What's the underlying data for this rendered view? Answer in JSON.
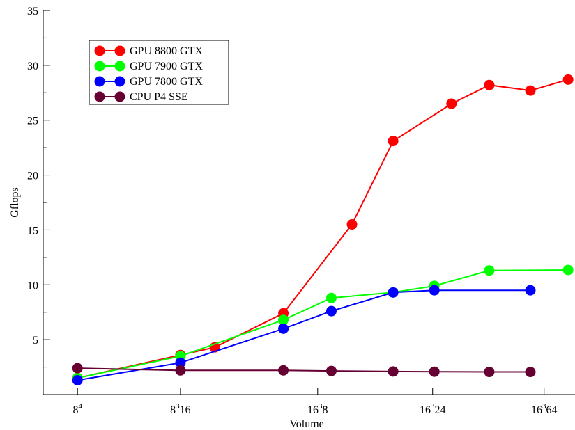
{
  "chart_data": {
    "type": "line",
    "xlabel": "Volume",
    "ylabel": "Gflops",
    "ylim": [
      0,
      35
    ],
    "yticks": [
      5,
      10,
      15,
      20,
      25,
      30,
      35
    ],
    "xlim": [
      0,
      15.5
    ],
    "xticks": [
      {
        "x": 1,
        "base": "8",
        "sup": "4",
        "suffix": ""
      },
      {
        "x": 4,
        "base": "8",
        "sup": "3",
        "suffix": "16"
      },
      {
        "x": 8,
        "base": "16",
        "sup": "3",
        "suffix": "8"
      },
      {
        "x": 11.35,
        "base": "16",
        "sup": "3",
        "suffix": "24"
      },
      {
        "x": 14.6,
        "base": "16",
        "sup": "3",
        "suffix": "64"
      }
    ],
    "grid": false,
    "legend_position": "top-left",
    "series": [
      {
        "name": "GPU 8800 GTX",
        "color": "#ff0000",
        "points": [
          [
            1.0,
            1.5
          ],
          [
            4.0,
            3.6
          ],
          [
            5.0,
            4.3
          ],
          [
            7.0,
            7.4
          ],
          [
            9.0,
            15.5
          ],
          [
            10.2,
            23.1
          ],
          [
            11.9,
            26.5
          ],
          [
            13.0,
            28.2
          ],
          [
            14.2,
            27.7
          ],
          [
            15.3,
            28.7
          ]
        ]
      },
      {
        "name": "GPU 7900 GTX",
        "color": "#00ff00",
        "points": [
          [
            1.0,
            1.5
          ],
          [
            4.0,
            3.5
          ],
          [
            7.0,
            6.8
          ],
          [
            8.4,
            8.8
          ],
          [
            10.2,
            9.3
          ],
          [
            11.4,
            9.9
          ],
          [
            13.0,
            11.3
          ],
          [
            15.3,
            11.35
          ]
        ]
      },
      {
        "name": "GPU 7800 GTX",
        "color": "#0000ff",
        "points": [
          [
            1.0,
            1.3
          ],
          [
            4.0,
            2.9
          ],
          [
            7.0,
            6.0
          ],
          [
            8.4,
            7.6
          ],
          [
            10.2,
            9.3
          ],
          [
            11.4,
            9.5
          ],
          [
            14.2,
            9.5
          ]
        ]
      },
      {
        "name": "CPU P4 SSE",
        "color": "#660033",
        "points": [
          [
            1.0,
            2.4
          ],
          [
            4.0,
            2.2
          ],
          [
            7.0,
            2.2
          ],
          [
            8.4,
            2.15
          ],
          [
            10.2,
            2.1
          ],
          [
            11.4,
            2.08
          ],
          [
            13.0,
            2.06
          ],
          [
            14.2,
            2.06
          ]
        ]
      }
    ]
  }
}
